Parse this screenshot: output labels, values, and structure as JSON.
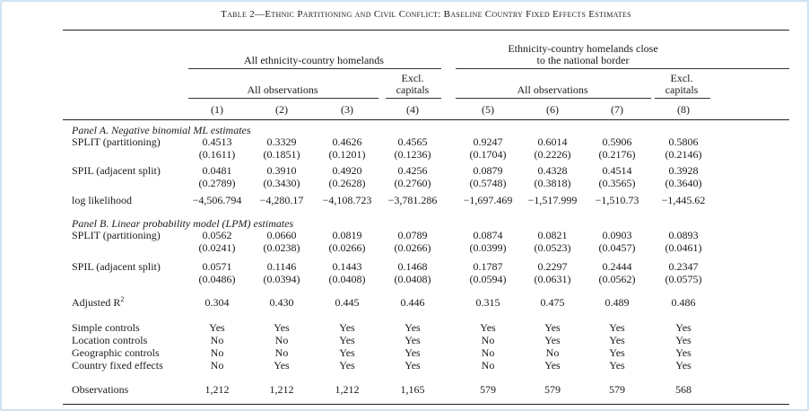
{
  "title_prefix": "T",
  "title_rest": "ABLE 2—E",
  "title": "Table 2—Ethnic Partitioning and Civil Conflict: Baseline Country Fixed Effects Estimates",
  "header": {
    "group1": "All ethnicity-country homelands",
    "group2_line1": "Ethnicity-country homelands close",
    "group2_line2": "to the national border",
    "all_obs_1": "All observations",
    "all_obs_2": "All observations",
    "excl_1": "Excl.",
    "capitals_1": "capitals",
    "excl_2": "Excl.",
    "capitals_2": "capitals",
    "cols": [
      "(1)",
      "(2)",
      "(3)",
      "(4)",
      "(5)",
      "(6)",
      "(7)",
      "(8)"
    ]
  },
  "panel_a": {
    "title": "Panel A. Negative binomial ML estimates",
    "split_label": "SPLIT (partitioning)",
    "split": [
      "0.4513",
      "0.3329",
      "0.4626",
      "0.4565",
      "0.9247",
      "0.6014",
      "0.5906",
      "0.5806"
    ],
    "split_se": [
      "(0.1611)",
      "(0.1851)",
      "(0.1201)",
      "(0.1236)",
      "(0.1704)",
      "(0.2226)",
      "(0.2176)",
      "(0.2146)"
    ],
    "spil_label": "SPIL (adjacent split)",
    "spil": [
      "0.0481",
      "0.3910",
      "0.4920",
      "0.4256",
      "0.0879",
      "0.4328",
      "0.4514",
      "0.3928"
    ],
    "spil_se": [
      "(0.2789)",
      "(0.3430)",
      "(0.2628)",
      "(0.2760)",
      "(0.5748)",
      "(0.3818)",
      "(0.3565)",
      "(0.3640)"
    ],
    "ll_label": "log likelihood",
    "ll": [
      "−4,506.794",
      "−4,280.17",
      "−4,108.723",
      "−3,781.286",
      "−1,697.469",
      "−1,517.999",
      "−1,510.73",
      "−1,445.62"
    ]
  },
  "panel_b": {
    "title": "Panel B. Linear probability model (LPM) estimates",
    "split_label": "SPLIT (partitioning)",
    "split": [
      "0.0562",
      "0.0660",
      "0.0819",
      "0.0789",
      "0.0874",
      "0.0821",
      "0.0903",
      "0.0893"
    ],
    "split_se": [
      "(0.0241)",
      "(0.0238)",
      "(0.0266)",
      "(0.0266)",
      "(0.0399)",
      "(0.0523)",
      "(0.0457)",
      "(0.0461)"
    ],
    "spil_label": "SPIL (adjacent split)",
    "spil": [
      "0.0571",
      "0.1146",
      "0.1443",
      "0.1468",
      "0.1787",
      "0.2297",
      "0.2444",
      "0.2347"
    ],
    "spil_se": [
      "(0.0486)",
      "(0.0394)",
      "(0.0408)",
      "(0.0408)",
      "(0.0594)",
      "(0.0631)",
      "(0.0562)",
      "(0.0575)"
    ],
    "adjr2_label": "Adjusted R",
    "adjr2_sup": "2",
    "adjr2": [
      "0.304",
      "0.430",
      "0.445",
      "0.446",
      "0.315",
      "0.475",
      "0.489",
      "0.486"
    ]
  },
  "controls": {
    "simple_label": "Simple controls",
    "simple": [
      "Yes",
      "Yes",
      "Yes",
      "Yes",
      "Yes",
      "Yes",
      "Yes",
      "Yes"
    ],
    "location_label": "Location controls",
    "location": [
      "No",
      "No",
      "Yes",
      "Yes",
      "No",
      "Yes",
      "Yes",
      "Yes"
    ],
    "geographic_label": "Geographic controls",
    "geographic": [
      "No",
      "No",
      "Yes",
      "Yes",
      "No",
      "No",
      "Yes",
      "Yes"
    ],
    "country_fe_label": "Country fixed effects",
    "country_fe": [
      "No",
      "Yes",
      "Yes",
      "Yes",
      "No",
      "Yes",
      "Yes",
      "Yes"
    ]
  },
  "observations": {
    "label": "Observations",
    "values": [
      "1,212",
      "1,212",
      "1,212",
      "1,165",
      "579",
      "579",
      "579",
      "568"
    ]
  }
}
